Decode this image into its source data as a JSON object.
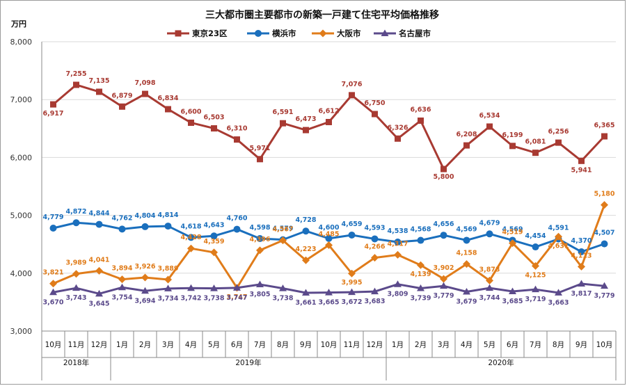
{
  "chart_data": {
    "type": "line",
    "title": "三大都市圏主要都市の新築一戸建て住宅平均価格推移",
    "ylabel": "万円",
    "ylim": [
      3000,
      8000
    ],
    "yticks": [
      "3,000",
      "4,000",
      "5,000",
      "6,000",
      "7,000",
      "8,000"
    ],
    "categories": [
      "10月",
      "11月",
      "12月",
      "1月",
      "2月",
      "3月",
      "4月",
      "5月",
      "6月",
      "7月",
      "8月",
      "9月",
      "10月",
      "11月",
      "12月",
      "1月",
      "2月",
      "3月",
      "4月",
      "5月",
      "6月",
      "7月",
      "8月",
      "9月",
      "10月"
    ],
    "years": [
      {
        "label": "2018年",
        "start": 0,
        "end": 2
      },
      {
        "label": "2019年",
        "start": 3,
        "end": 14
      },
      {
        "label": "2020年",
        "start": 15,
        "end": 24
      }
    ],
    "series": [
      {
        "name": "東京23区",
        "color": "#a83a32",
        "marker": "square",
        "values": [
          6917,
          7255,
          7135,
          6879,
          7098,
          6834,
          6600,
          6503,
          6310,
          5971,
          6591,
          6473,
          6612,
          7076,
          6750,
          6326,
          6636,
          5800,
          6208,
          6534,
          6199,
          6081,
          6256,
          5941,
          6365
        ],
        "labels": [
          "6,917",
          "7,255",
          "7,135",
          "6,879",
          "7,098",
          "6,834",
          "6,600",
          "6,503",
          "6,310",
          "5,971",
          "6,591",
          "6,473",
          "6,612",
          "7,076",
          "6,750",
          "6,326",
          "6,636",
          "5,800",
          "6,208",
          "6,534",
          "6,199",
          "6,081",
          "6,256",
          "5,941",
          "6,365"
        ]
      },
      {
        "name": "横浜市",
        "color": "#1a6fbd",
        "marker": "circle",
        "values": [
          4779,
          4872,
          4844,
          4762,
          4804,
          4814,
          4618,
          4643,
          4760,
          4598,
          4579,
          4728,
          4600,
          4659,
          4593,
          4538,
          4568,
          4656,
          4569,
          4679,
          4569,
          4454,
          4591,
          4370,
          4507
        ],
        "labels": [
          "4,779",
          "4,872",
          "4,844",
          "4,762",
          "4,804",
          "4,814",
          "4,618",
          "4,643",
          "4,760",
          "4,598",
          "4,579",
          "4,728",
          "4,600",
          "4,659",
          "4,593",
          "4,538",
          "4,568",
          "4,656",
          "4,569",
          "4,679",
          "4,569",
          "4,454",
          "4,591",
          "4,370",
          "4,507"
        ]
      },
      {
        "name": "大阪市",
        "color": "#e07c1a",
        "marker": "diamond",
        "values": [
          3821,
          3989,
          4041,
          3894,
          3926,
          3889,
          4428,
          4359,
          3747,
          4396,
          4567,
          4223,
          4485,
          3995,
          4266,
          4317,
          4139,
          3902,
          4158,
          3873,
          4519,
          4125,
          4631,
          4113,
          5180
        ],
        "labels": [
          "3,821",
          "3,989",
          "4,041",
          "3,894",
          "3,926",
          "3,889",
          "4,428",
          "4,359",
          "3,747",
          "4,396",
          "4,567",
          "4,223",
          "4,485",
          "3,995",
          "4,266",
          "4,317",
          "4,139",
          "3,902",
          "4,158",
          "3,873",
          "4,519",
          "4,125",
          "4,631",
          "4,113",
          "5,180"
        ]
      },
      {
        "name": "名古屋市",
        "color": "#5b4a8b",
        "marker": "triangle",
        "values": [
          3670,
          3743,
          3645,
          3754,
          3694,
          3734,
          3742,
          3738,
          3747,
          3805,
          3738,
          3661,
          3665,
          3672,
          3683,
          3809,
          3739,
          3779,
          3679,
          3744,
          3685,
          3719,
          3663,
          3817,
          3779
        ],
        "labels": [
          "3,670",
          "3,743",
          "3,645",
          "3,754",
          "3,694",
          "3,734",
          "3,742",
          "3,738",
          "3,747",
          "3,805",
          "3,738",
          "3,661",
          "3,665",
          "3,672",
          "3,683",
          "3,809",
          "3,739",
          "3,779",
          "3,679",
          "3,744",
          "3,685",
          "3,719",
          "3,663",
          "3,817",
          "3,779"
        ]
      }
    ]
  }
}
